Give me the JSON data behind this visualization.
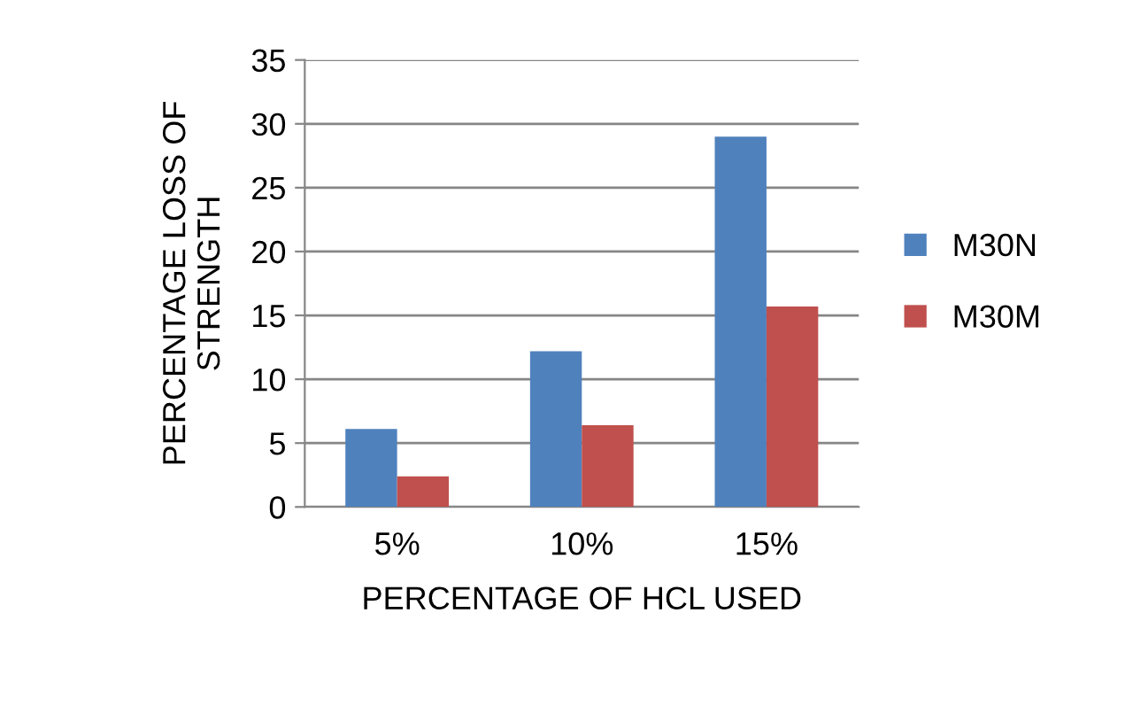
{
  "chart_data": {
    "type": "bar",
    "xlabel": "PERCENTAGE OF HCL USED",
    "ylabel": "PERCENTAGE LOSS OF\nSTRENGTH",
    "categories": [
      "5%",
      "10%",
      "15%"
    ],
    "series": [
      {
        "name": "M30N",
        "color": "#4f81bd",
        "values": [
          6.1,
          12.2,
          29
        ]
      },
      {
        "name": "M30M",
        "color": "#c0504d",
        "values": [
          2.4,
          6.4,
          15.7
        ]
      }
    ],
    "ylim": [
      0,
      35
    ],
    "yticks": [
      0,
      5,
      10,
      15,
      20,
      25,
      30,
      35
    ],
    "grid": "y",
    "legend": "right"
  }
}
